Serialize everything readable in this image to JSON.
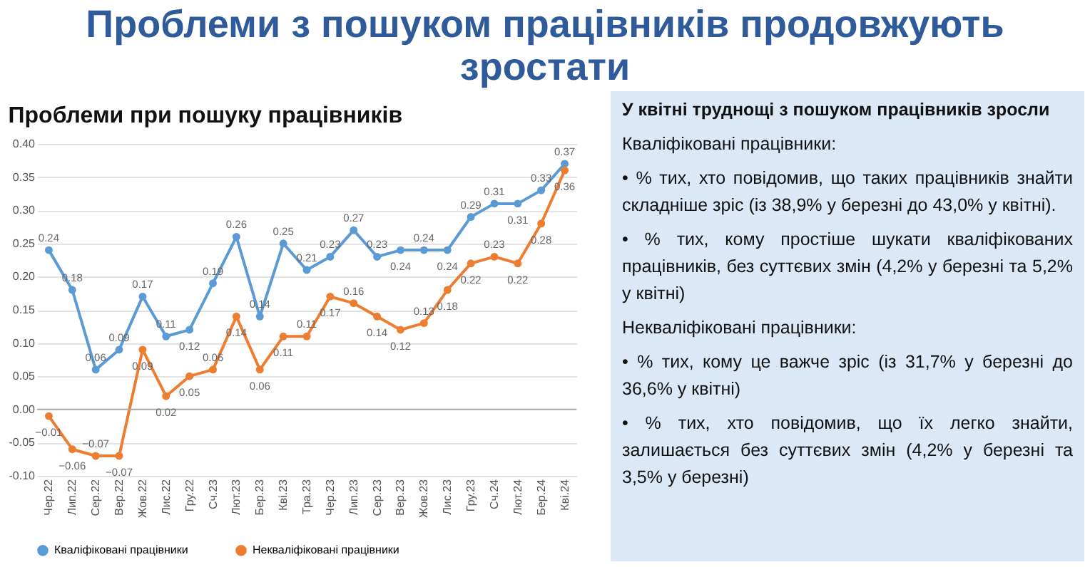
{
  "chart_data": [
    {
      "type": "line",
      "title": "Проблеми з пошуком працівників продовжують зростати",
      "subtitle": "Проблеми при пошуку працівників",
      "categories": [
        "Чер.22",
        "Лип.22",
        "Сер.22",
        "Вер.22",
        "Жов.22",
        "Лис.22",
        "Гру.22",
        "Сч.23",
        "Лют.23",
        "Бер.23",
        "Кві.23",
        "Тра.23",
        "Чер.23",
        "Лип.23",
        "Сер.23",
        "Вер.23",
        "Жов.23",
        "Лис.23",
        "Гру.23",
        "Сч.24",
        "Лют.24",
        "Бер.24",
        "Кві.24"
      ],
      "series": [
        {
          "name": "Кваліфіковані працівники",
          "color": "#5b9bd5",
          "values": [
            0.24,
            0.18,
            0.06,
            0.09,
            0.17,
            0.11,
            0.12,
            0.19,
            0.26,
            0.14,
            0.25,
            0.21,
            0.23,
            0.27,
            0.23,
            0.24,
            0.24,
            0.24,
            0.29,
            0.31,
            0.31,
            0.33,
            0.37
          ]
        },
        {
          "name": "Некваліфіковані працівники",
          "color": "#ed7d31",
          "values": [
            -0.01,
            -0.06,
            -0.07,
            -0.07,
            0.09,
            0.02,
            0.05,
            0.06,
            0.14,
            0.06,
            0.11,
            0.11,
            0.17,
            0.16,
            0.14,
            0.12,
            0.13,
            0.18,
            0.22,
            0.23,
            0.22,
            0.28,
            0.36
          ]
        }
      ],
      "ylim": [
        -0.1,
        0.4
      ],
      "yticks": [
        {
          "value": -0.1,
          "label": "-0.10"
        },
        -0.05,
        {
          "value": 0,
          "label": "0.00"
        },
        0.05,
        {
          "value": 0.1,
          "label": "0.10"
        },
        0.15,
        {
          "value": 0.2,
          "label": "0.20"
        },
        0.25,
        {
          "value": 0.3,
          "label": "0.30"
        },
        0.35,
        {
          "value": 0.4,
          "label": "0.40"
        }
      ],
      "grid": "y",
      "legend": "bottom",
      "marker": "circle",
      "data_labels": true
    },
    {
      "type": "other",
      "title": "У квітні труднощі з пошуком працівників зросли",
      "annotations": [
        "Кваліфіковані працівники:",
        "• % тих, хто повідомив, що таких працівників знайти складніше зріс (із 38,9% у березні до 43,0% у квітні).",
        "• % тих, кому простіше шукати кваліфікованих працівників, без суттєвих змін (4,2% у березні та 5,2% у квітні)",
        "Некваліфіковані працівники:",
        "• % тих, кому це важче зріс (із 31,7% у березні до 36,6% у квітні)",
        "• % тих, хто повідомив, що їх легко знайти, залишається без суттєвих змін (4,2% у березні та 3,5% у березні)"
      ]
    }
  ]
}
